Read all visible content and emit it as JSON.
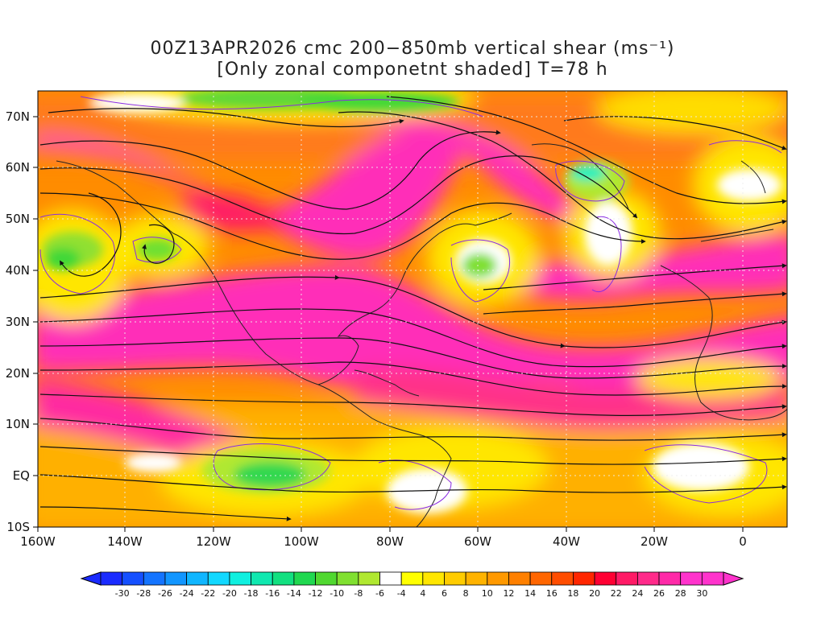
{
  "title": {
    "line1": "00Z13APR2026 cmc 200−850mb vertical shear (ms⁻¹)",
    "line2": "[Only zonal componetnt shaded] T=78 h"
  },
  "map": {
    "lon_range": [
      -160,
      10
    ],
    "lat_range": [
      -10,
      75
    ],
    "x_ticks": [
      "160W",
      "140W",
      "120W",
      "100W",
      "80W",
      "60W",
      "40W",
      "20W",
      "0"
    ],
    "y_ticks": [
      "70N",
      "60N",
      "50N",
      "40N",
      "30N",
      "20N",
      "10N",
      "EQ",
      "10S"
    ],
    "grid": "dotted",
    "overlay": "streamlines"
  },
  "colorbar": {
    "labels": [
      "-30",
      "-28",
      "-26",
      "-24",
      "-22",
      "-20",
      "-18",
      "-16",
      "-14",
      "-12",
      "-10",
      "-8",
      "-6",
      "-4",
      "4",
      "6",
      "8",
      "10",
      "12",
      "14",
      "16",
      "18",
      "20",
      "22",
      "24",
      "26",
      "28",
      "30"
    ],
    "colors": [
      "#1a2bff",
      "#1550ff",
      "#1474ff",
      "#1296ff",
      "#10b6ff",
      "#12d8ff",
      "#10f0e0",
      "#10e8b0",
      "#12e080",
      "#20d850",
      "#50d830",
      "#80e030",
      "#b0e830",
      "#ffffff",
      "#ffff00",
      "#ffe600",
      "#ffcc00",
      "#ffb300",
      "#ff9900",
      "#ff8000",
      "#ff6600",
      "#ff4d00",
      "#ff2600",
      "#ff0033",
      "#ff1a66",
      "#ff2a8a",
      "#ff2aa8",
      "#ff33cc",
      "#ff33cc"
    ]
  }
}
